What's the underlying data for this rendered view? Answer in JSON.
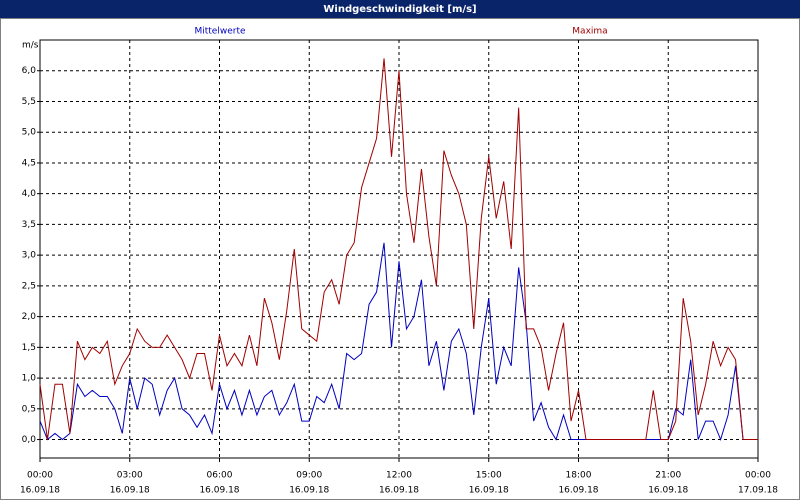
{
  "chart_data": {
    "type": "line",
    "title": "Windgeschwindigkeit [m/s]",
    "y_label": "m/s",
    "x": [
      0,
      0.25,
      0.5,
      0.75,
      1,
      1.25,
      1.5,
      1.75,
      2,
      2.25,
      2.5,
      2.75,
      3,
      3.25,
      3.5,
      3.75,
      4,
      4.25,
      4.5,
      4.75,
      5,
      5.25,
      5.5,
      5.75,
      6,
      6.25,
      6.5,
      6.75,
      7,
      7.25,
      7.5,
      7.75,
      8,
      8.25,
      8.5,
      8.75,
      9,
      9.25,
      9.5,
      9.75,
      10,
      10.25,
      10.5,
      10.75,
      11,
      11.25,
      11.5,
      11.75,
      12,
      12.25,
      12.5,
      12.75,
      13,
      13.25,
      13.5,
      13.75,
      14,
      14.25,
      14.5,
      14.75,
      15,
      15.25,
      15.5,
      15.75,
      16,
      16.25,
      16.5,
      16.75,
      17,
      17.25,
      17.5,
      17.75,
      18,
      18.25,
      18.5,
      18.75,
      19,
      19.25,
      19.5,
      19.75,
      20,
      20.25,
      20.5,
      20.75,
      21,
      21.25,
      21.5,
      21.75,
      22,
      22.25,
      22.5,
      22.75,
      23,
      23.25,
      23.5,
      23.75,
      24
    ],
    "series": [
      {
        "name": "Mittelwerte",
        "color": "#0000c0",
        "values": [
          0.3,
          0.0,
          0.1,
          0.0,
          0.1,
          0.9,
          0.7,
          0.8,
          0.7,
          0.7,
          0.5,
          0.1,
          1.0,
          0.5,
          1.0,
          0.9,
          0.4,
          0.8,
          1.0,
          0.5,
          0.4,
          0.2,
          0.4,
          0.1,
          0.9,
          0.5,
          0.8,
          0.4,
          0.8,
          0.4,
          0.7,
          0.8,
          0.4,
          0.6,
          0.9,
          0.3,
          0.3,
          0.7,
          0.6,
          0.9,
          0.5,
          1.4,
          1.3,
          1.4,
          2.2,
          2.4,
          3.2,
          1.5,
          2.9,
          1.8,
          2.0,
          2.6,
          1.2,
          1.6,
          0.8,
          1.6,
          1.8,
          1.4,
          0.4,
          1.5,
          2.3,
          0.9,
          1.5,
          1.2,
          2.8,
          1.9,
          0.3,
          0.6,
          0.2,
          0.0,
          0.4,
          0.0,
          0.0,
          0.0,
          0,
          0,
          0,
          0,
          0,
          0,
          0,
          0,
          0,
          0,
          0,
          0.5,
          0.4,
          1.3,
          0.0,
          0.3,
          0.3,
          0.0,
          0.4,
          1.2,
          0.0,
          0,
          0
        ]
      },
      {
        "name": "Maxima",
        "color": "#a00000",
        "values": [
          0.9,
          0.0,
          0.9,
          0.9,
          0.1,
          1.6,
          1.3,
          1.5,
          1.4,
          1.6,
          0.9,
          1.2,
          1.4,
          1.8,
          1.6,
          1.5,
          1.5,
          1.7,
          1.5,
          1.3,
          1.0,
          1.4,
          1.4,
          0.8,
          1.7,
          1.2,
          1.4,
          1.2,
          1.7,
          1.2,
          2.3,
          1.9,
          1.3,
          2.1,
          3.1,
          1.8,
          1.7,
          1.6,
          2.4,
          2.6,
          2.2,
          3.0,
          3.2,
          4.1,
          4.5,
          4.9,
          6.2,
          4.6,
          6.0,
          4.0,
          3.2,
          4.4,
          3.3,
          2.5,
          4.7,
          4.3,
          4.0,
          3.5,
          1.8,
          3.6,
          4.6,
          3.6,
          4.2,
          3.1,
          5.4,
          1.8,
          1.8,
          1.5,
          0.8,
          1.4,
          1.9,
          0.3,
          0.8,
          0.0,
          0,
          0,
          0,
          0,
          0,
          0,
          0,
          0,
          0.8,
          0,
          0,
          0.3,
          2.3,
          1.6,
          0.4,
          0.9,
          1.6,
          1.2,
          1.5,
          1.3,
          0,
          0,
          0
        ]
      }
    ],
    "xlim": [
      0,
      24
    ],
    "xticks": [
      {
        "value": 0,
        "label": "00:00"
      },
      {
        "value": 3,
        "label": "03:00"
      },
      {
        "value": 6,
        "label": "06:00"
      },
      {
        "value": 9,
        "label": "09:00"
      },
      {
        "value": 12,
        "label": "12:00"
      },
      {
        "value": 15,
        "label": "15:00"
      },
      {
        "value": 18,
        "label": "18:00"
      },
      {
        "value": 21,
        "label": "21:00"
      },
      {
        "value": 24,
        "label": "00:00"
      }
    ],
    "xtick_dates": [
      "16.09.18",
      "16.09.18",
      "16.09.18",
      "16.09.18",
      "16.09.18",
      "16.09.18",
      "16.09.18",
      "16.09.18",
      "17.09.18"
    ],
    "ylim": [
      -0.3,
      6.5
    ],
    "yticks": [
      {
        "value": 0,
        "label": "0,0"
      },
      {
        "value": 0.5,
        "label": "0,5"
      },
      {
        "value": 1,
        "label": "1,0"
      },
      {
        "value": 1.5,
        "label": "1,5"
      },
      {
        "value": 2,
        "label": "2,0"
      },
      {
        "value": 2.5,
        "label": "2,5"
      },
      {
        "value": 3,
        "label": "3,0"
      },
      {
        "value": 3.5,
        "label": "3,5"
      },
      {
        "value": 4,
        "label": "4,0"
      },
      {
        "value": 4.5,
        "label": "4,5"
      },
      {
        "value": 5,
        "label": "5,0"
      },
      {
        "value": 5.5,
        "label": "5,5"
      },
      {
        "value": 6,
        "label": "6,0"
      }
    ],
    "grid": true
  }
}
